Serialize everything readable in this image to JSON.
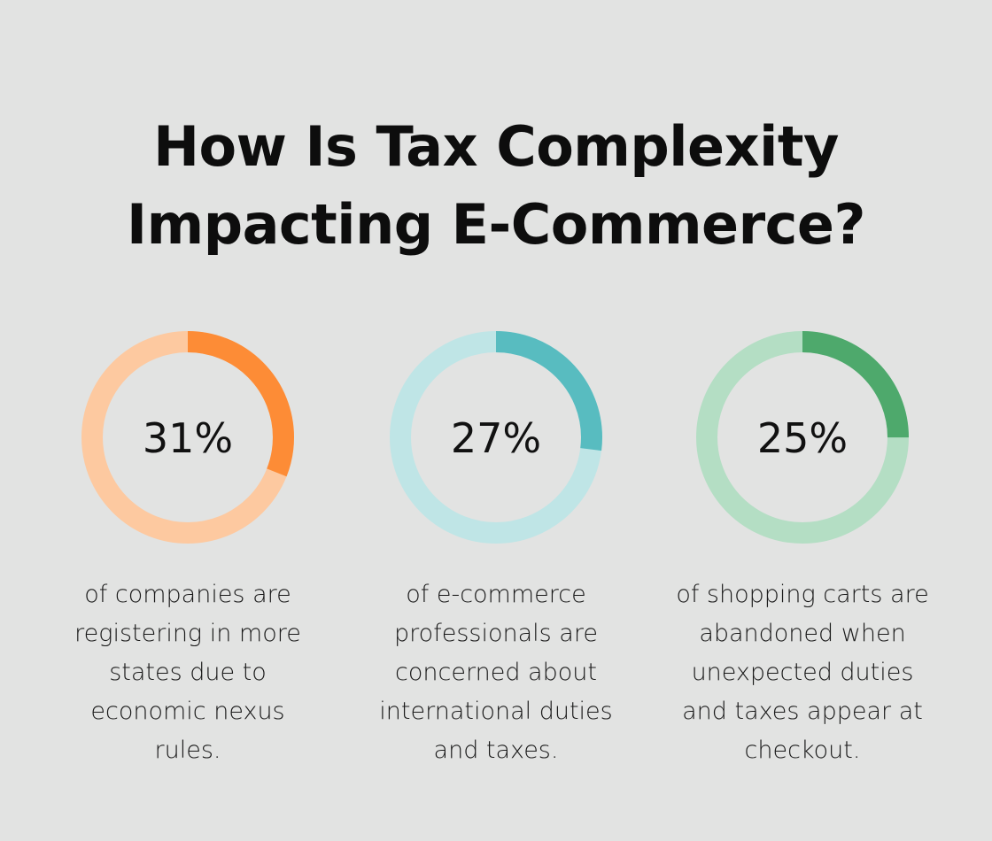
{
  "title": {
    "line1": "How Is Tax Complexity",
    "line2": "Impacting E-Commerce?"
  },
  "chart_data": [
    {
      "type": "pie",
      "value": 31,
      "label": "31%",
      "track_color": "#fdc9a0",
      "fill_color": "#fd8c36",
      "description_lines": [
        "of companies are",
        "registering in more",
        "states due to",
        "economic nexus",
        "rules."
      ]
    },
    {
      "type": "pie",
      "value": 27,
      "label": "27%",
      "track_color": "#bfe5e6",
      "fill_color": "#58bcc0",
      "description_lines": [
        "of e-commerce",
        "professionals are",
        "concerned about",
        "international duties",
        "and taxes."
      ]
    },
    {
      "type": "pie",
      "value": 25,
      "label": "25%",
      "track_color": "#b4dec4",
      "fill_color": "#4ea96c",
      "description_lines": [
        "of shopping carts are",
        "abandoned when",
        "unexpected duties",
        "and taxes appear at",
        "checkout."
      ]
    }
  ]
}
